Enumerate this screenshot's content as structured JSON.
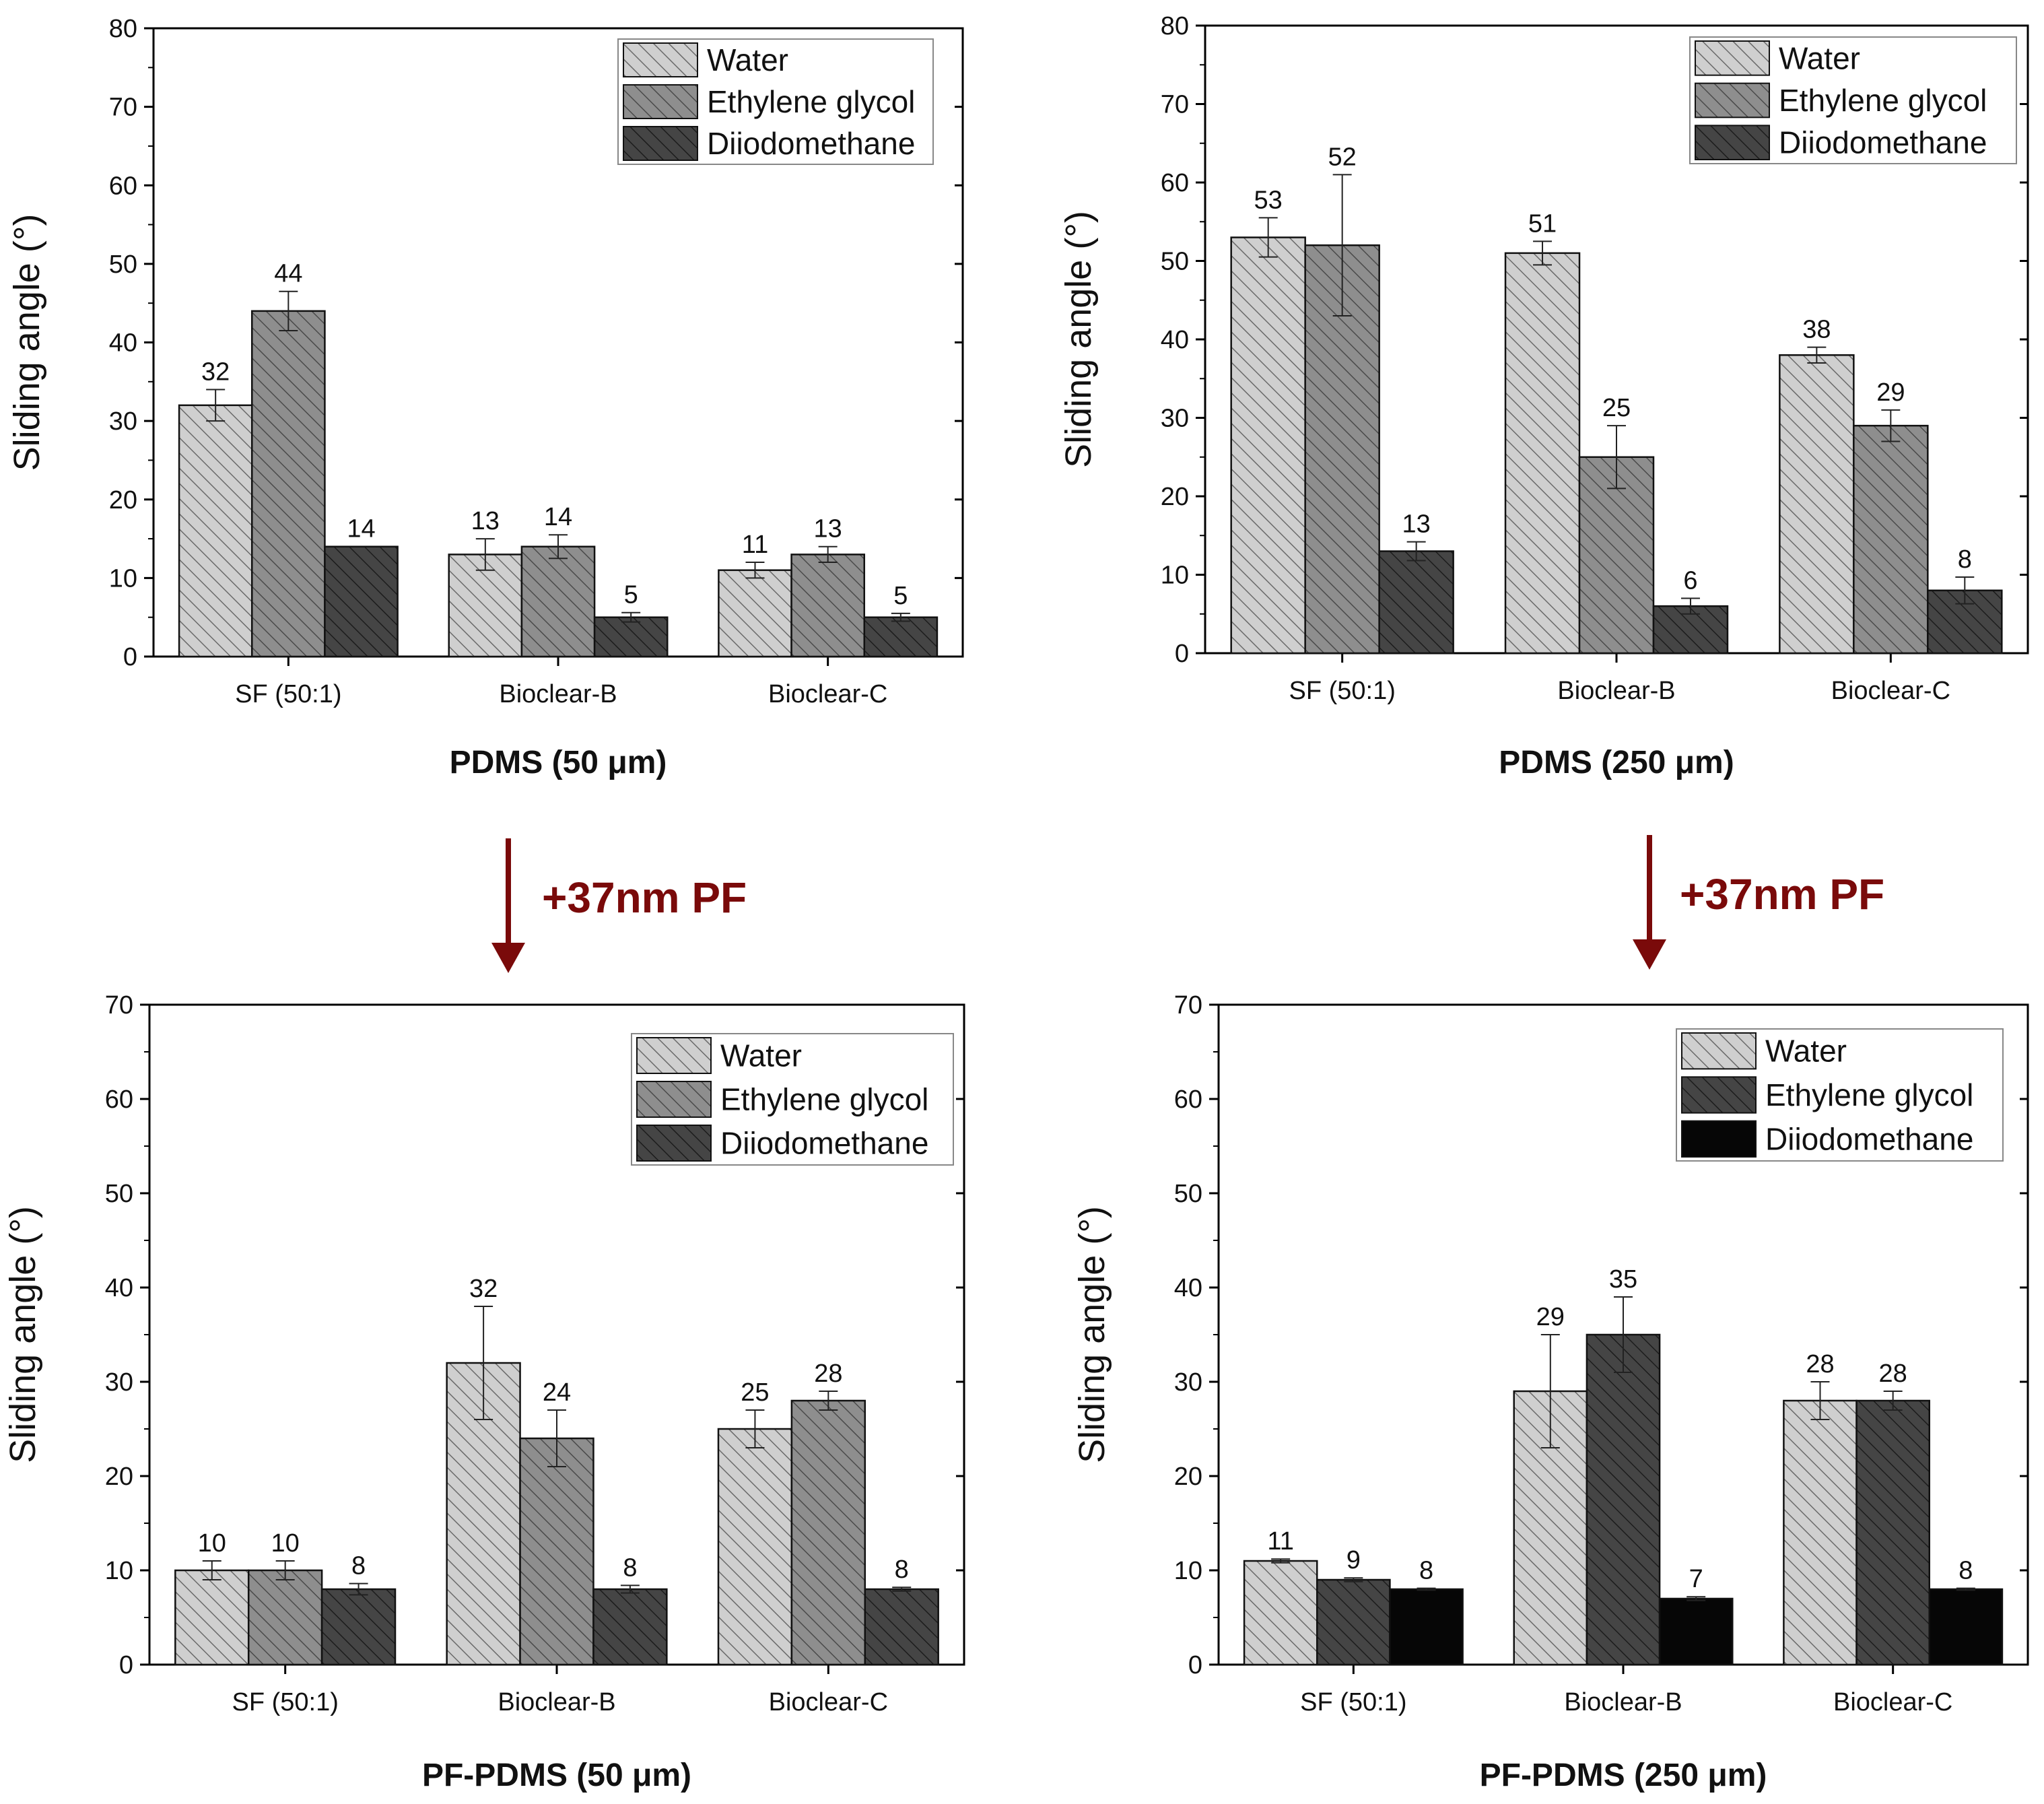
{
  "figure": {
    "arrow_label_left": "+37nm PF",
    "arrow_label_right": "+37nm PF",
    "arrow_color": "#7a0a0a"
  },
  "chart_data": [
    {
      "type": "bar",
      "id": "pdms-50",
      "caption": "PDMS (50 μm)",
      "ylabel": "Sliding angle (°)",
      "xlabel": "",
      "ylim": [
        0,
        80
      ],
      "yticks": [
        0,
        10,
        20,
        30,
        40,
        50,
        60,
        70,
        80
      ],
      "categories": [
        "SF (50:1)",
        "Bioclear-B",
        "Bioclear-C"
      ],
      "legend_position": "top-right",
      "series": [
        {
          "name": "Water",
          "fill": "#c9c9c9",
          "values": [
            32,
            13,
            11
          ],
          "errors": [
            2,
            2,
            1
          ],
          "labels": [
            "32",
            "13",
            "11"
          ]
        },
        {
          "name": "Ethylene glycol",
          "fill": "#858585",
          "values": [
            44,
            14,
            13
          ],
          "errors": [
            2.5,
            1.5,
            1
          ],
          "labels": [
            "44",
            "14",
            "13"
          ]
        },
        {
          "name": "Diiodomethane",
          "fill": "#3c3c3c",
          "values": [
            14,
            5,
            5
          ],
          "errors": [
            0,
            0.6,
            0.5
          ],
          "labels": [
            "14",
            "5",
            "5"
          ]
        }
      ]
    },
    {
      "type": "bar",
      "id": "pdms-250",
      "caption": "PDMS (250 μm)",
      "ylabel": "Sliding angle (°)",
      "xlabel": "",
      "ylim": [
        0,
        80
      ],
      "yticks": [
        0,
        10,
        20,
        30,
        40,
        50,
        60,
        70,
        80
      ],
      "categories": [
        "SF (50:1)",
        "Bioclear-B",
        "Bioclear-C"
      ],
      "legend_position": "top-right",
      "series": [
        {
          "name": "Water",
          "fill": "#c9c9c9",
          "values": [
            53,
            51,
            38
          ],
          "errors": [
            2.5,
            1.5,
            1
          ],
          "labels": [
            "53",
            "51",
            "38"
          ]
        },
        {
          "name": "Ethylene glycol",
          "fill": "#858585",
          "values": [
            52,
            25,
            29
          ],
          "errors": [
            9,
            4,
            2
          ],
          "labels": [
            "52",
            "25",
            "29"
          ]
        },
        {
          "name": "Diiodomethane",
          "fill": "#3c3c3c",
          "values": [
            13,
            6,
            8
          ],
          "errors": [
            1.2,
            1,
            1.7
          ],
          "labels": [
            "13",
            "6",
            "8"
          ]
        }
      ]
    },
    {
      "type": "bar",
      "id": "pf-pdms-50",
      "caption": "PF-PDMS (50 μm)",
      "ylabel": "Sliding angle (°)",
      "xlabel": "",
      "ylim": [
        0,
        70
      ],
      "yticks": [
        0,
        10,
        20,
        30,
        40,
        50,
        60,
        70
      ],
      "categories": [
        "SF (50:1)",
        "Bioclear-B",
        "Bioclear-C"
      ],
      "legend_position": "top-right",
      "series": [
        {
          "name": "Water",
          "fill": "#c9c9c9",
          "values": [
            10,
            32,
            25
          ],
          "errors": [
            1,
            6,
            2
          ],
          "labels": [
            "10",
            "32",
            "25"
          ]
        },
        {
          "name": "Ethylene glycol",
          "fill": "#858585",
          "values": [
            10,
            24,
            28
          ],
          "errors": [
            1,
            3,
            1
          ],
          "labels": [
            "10",
            "24",
            "28"
          ]
        },
        {
          "name": "Diiodomethane",
          "fill": "#3c3c3c",
          "values": [
            8,
            8,
            8
          ],
          "errors": [
            0.6,
            0.4,
            0.2
          ],
          "labels": [
            "8",
            "8",
            "8"
          ]
        }
      ]
    },
    {
      "type": "bar",
      "id": "pf-pdms-250",
      "caption": "PF-PDMS (250 μm)",
      "ylabel": "Sliding angle (°)",
      "xlabel": "",
      "ylim": [
        0,
        70
      ],
      "yticks": [
        0,
        10,
        20,
        30,
        40,
        50,
        60,
        70
      ],
      "categories": [
        "SF (50:1)",
        "Bioclear-B",
        "Bioclear-C"
      ],
      "legend_position": "top-right",
      "series": [
        {
          "name": "Water",
          "fill": "#c9c9c9",
          "values": [
            11,
            29,
            28
          ],
          "errors": [
            0.2,
            6,
            2
          ],
          "labels": [
            "11",
            "29",
            "28"
          ]
        },
        {
          "name": "Ethylene glycol",
          "fill": "#3c3c3c",
          "values": [
            9,
            35,
            28
          ],
          "errors": [
            0.2,
            4,
            1
          ],
          "labels": [
            "9",
            "35",
            "28"
          ]
        },
        {
          "name": "Diiodomethane",
          "fill": "#050505",
          "values": [
            8,
            7,
            8
          ],
          "errors": [
            0.1,
            0.2,
            0.1
          ],
          "labels": [
            "8",
            "7",
            "8"
          ]
        }
      ]
    }
  ]
}
